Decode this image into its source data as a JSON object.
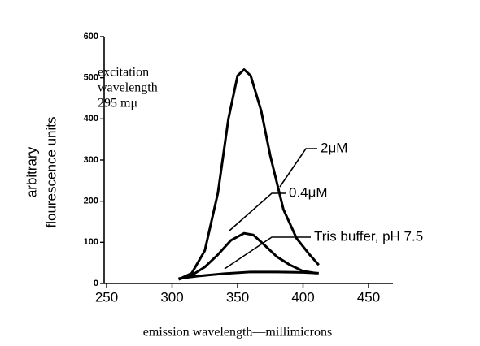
{
  "chart_data": {
    "type": "line",
    "x_label": "emission wavelength—millimicrons",
    "y_label_lines": [
      "arbitrary",
      "flourescence  units"
    ],
    "annotation_lines": [
      "excitation",
      "wavelength",
      "295 mμ"
    ],
    "xlim": [
      250,
      450
    ],
    "xticks": [
      250,
      300,
      350,
      400,
      450
    ],
    "ylim": [
      0,
      600
    ],
    "yticks": [
      0,
      100,
      200,
      300,
      400,
      500,
      600
    ],
    "series": [
      {
        "name": "2μM",
        "color": "#000000",
        "x": [
          305,
          315,
          325,
          335,
          343,
          350,
          355,
          360,
          368,
          375,
          385,
          395,
          405,
          412
        ],
        "values": [
          10,
          25,
          80,
          220,
          400,
          505,
          520,
          505,
          420,
          310,
          180,
          110,
          70,
          45
        ]
      },
      {
        "name": "0.4μM",
        "color": "#000000",
        "x": [
          305,
          315,
          325,
          335,
          345,
          355,
          362,
          370,
          380,
          390,
          400,
          410
        ],
        "values": [
          10,
          20,
          40,
          70,
          105,
          122,
          118,
          95,
          65,
          45,
          30,
          25
        ]
      },
      {
        "name": "Tris  buffer,  pH  7.5",
        "color": "#000000",
        "x": [
          305,
          320,
          340,
          360,
          380,
          400,
          412
        ],
        "values": [
          12,
          18,
          24,
          28,
          28,
          27,
          25
        ]
      }
    ]
  }
}
